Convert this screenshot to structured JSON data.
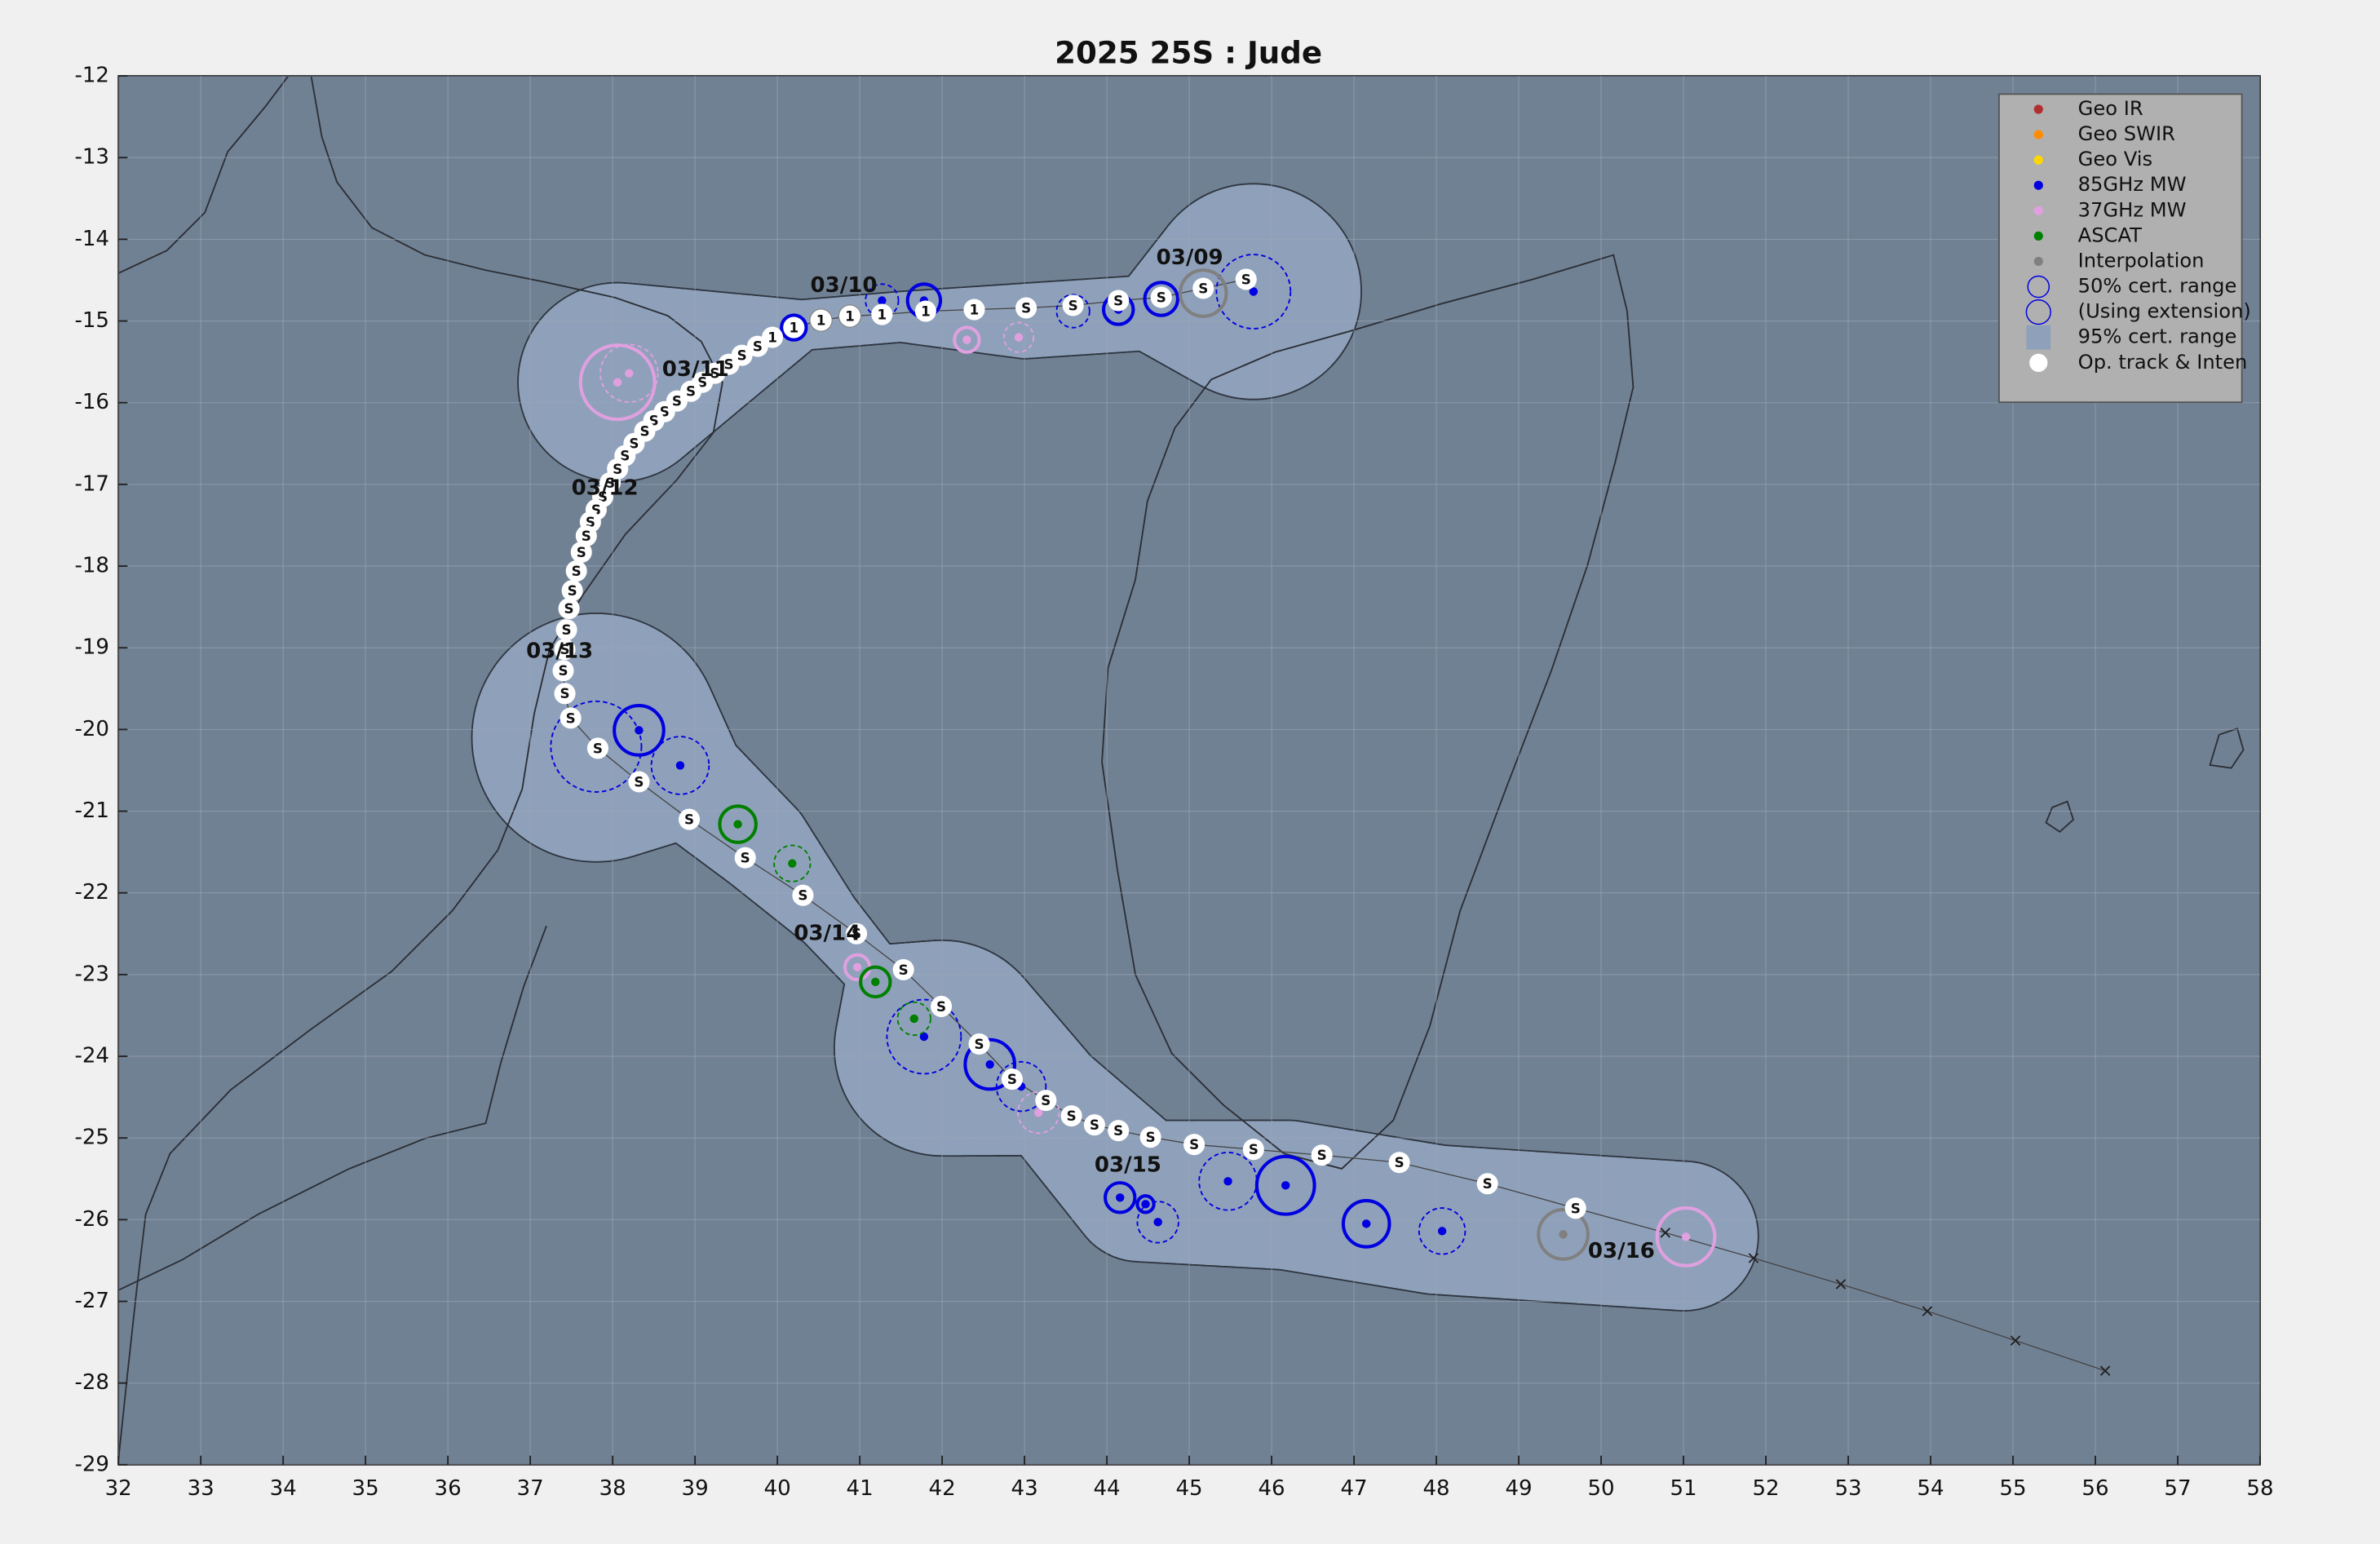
{
  "chart_data": {
    "type": "map",
    "title": "2025  25S :  Jude",
    "xlim": [
      32,
      58
    ],
    "ylim": [
      -29,
      -12
    ],
    "xticks": [
      32,
      33,
      34,
      35,
      36,
      37,
      38,
      39,
      40,
      41,
      42,
      43,
      44,
      45,
      46,
      47,
      48,
      49,
      50,
      51,
      52,
      53,
      54,
      55,
      56,
      57,
      58
    ],
    "yticks": [
      -29,
      -28,
      -27,
      -26,
      -25,
      -24,
      -23,
      -22,
      -21,
      -20,
      -19,
      -18,
      -17,
      -16,
      -15,
      -14,
      -13,
      -12
    ],
    "grid": true,
    "series": [
      {
        "name": "Geo IR",
        "color": "#b03030",
        "x": [],
        "values": [],
        "range": [],
        "dashed": []
      },
      {
        "name": "Geo SWIR",
        "color": "#ff8c00",
        "x": [],
        "values": [],
        "range": [],
        "dashed": []
      },
      {
        "name": "Geo Vis",
        "color": "#ffd700",
        "x": [],
        "values": [],
        "range": [],
        "dashed": []
      },
      {
        "name": "85GHz MW",
        "color": "#0000e0",
        "x": [
          40.2,
          41.27,
          41.78,
          43.59,
          44.14,
          44.66,
          45.78,
          38.32,
          38.82,
          37.8,
          41.78,
          42.58,
          42.96,
          44.16,
          44.47,
          44.62,
          45.47,
          46.17,
          47.15,
          48.07
        ],
        "values": [
          -15.08,
          -14.75,
          -14.75,
          -14.88,
          -14.86,
          -14.73,
          -14.64,
          -20.01,
          -20.44,
          -20.21,
          -23.76,
          -24.1,
          -24.37,
          -25.73,
          -25.81,
          -26.03,
          -25.53,
          -25.58,
          -26.05,
          -26.14
        ],
        "range": [
          0.15,
          0.2,
          0.2,
          0.2,
          0.18,
          0.2,
          0.45,
          0.3,
          0.35,
          0.55,
          0.45,
          0.3,
          0.3,
          0.18,
          0.1,
          0.25,
          0.35,
          0.35,
          0.28,
          0.28
        ],
        "dashed": [
          false,
          true,
          false,
          true,
          false,
          false,
          true,
          false,
          true,
          true,
          true,
          false,
          true,
          false,
          false,
          true,
          true,
          false,
          false,
          true
        ]
      },
      {
        "name": "37GHz MW",
        "color": "#e0a0e0",
        "x": [
          38.06,
          38.2,
          42.3,
          42.93,
          40.97,
          43.17,
          51.03
        ],
        "values": [
          -15.75,
          -15.64,
          -15.23,
          -15.2,
          -22.91,
          -24.69,
          -26.21
        ],
        "range": [
          0.45,
          0.35,
          0.15,
          0.18,
          0.15,
          0.25,
          0.35
        ],
        "dashed": [
          false,
          true,
          false,
          true,
          false,
          true,
          false
        ]
      },
      {
        "name": "ASCAT",
        "color": "#008000",
        "x": [
          39.52,
          40.18,
          41.19,
          41.66
        ],
        "values": [
          -21.16,
          -21.64,
          -23.09,
          -23.54
        ],
        "range": [
          0.22,
          0.22,
          0.18,
          0.2
        ],
        "dashed": [
          false,
          true,
          false,
          true
        ]
      },
      {
        "name": "Interpolation",
        "color": "#808080",
        "x": [
          45.17,
          40.53,
          40.88,
          49.54
        ],
        "values": [
          -14.66,
          -14.99,
          -14.94,
          -26.18
        ],
        "range": [
          0.28,
          0.12,
          0.12,
          0.3
        ],
        "dashed": [
          false,
          false,
          false,
          false
        ]
      }
    ],
    "ranges": [
      {
        "name": "50% cert. range",
        "color": "#0000e0"
      },
      {
        "name": "(Using extension)",
        "color": "#0000e0"
      },
      {
        "name": "95% cert. range",
        "color": "#8fa1ba",
        "regions": [
          [
            [
              45.78,
              -14.64,
              1.3
            ],
            [
              44.5,
              -14.9,
              0.45
            ],
            [
              43.0,
              -15.0,
              0.45
            ],
            [
              41.5,
              -14.95,
              0.3
            ],
            [
              40.3,
              -15.05,
              0.3
            ],
            [
              38.06,
              -15.75,
              1.2
            ]
          ],
          [
            [
              37.8,
              -20.1,
              1.5
            ],
            [
              38.9,
              -20.6,
              0.7
            ],
            [
              39.8,
              -21.4,
              0.6
            ],
            [
              40.6,
              -22.3,
              0.4
            ],
            [
              41.2,
              -23.0,
              0.35
            ],
            [
              42.0,
              -23.9,
              1.3
            ],
            [
              43.3,
              -24.5,
              0.7
            ],
            [
              44.4,
              -25.65,
              0.85
            ],
            [
              46.2,
              -25.7,
              0.9
            ],
            [
              48.0,
              -26.0,
              0.9
            ],
            [
              51.0,
              -26.2,
              0.9
            ]
          ]
        ]
      }
    ],
    "track": {
      "name": "Op. track & Inten",
      "color": "#ffffff",
      "x": [
        45.69,
        45.17,
        44.66,
        44.14,
        43.59,
        43.02,
        42.39,
        41.8,
        41.27,
        40.88,
        40.53,
        40.2,
        39.94,
        39.76,
        39.57,
        39.41,
        39.24,
        39.09,
        38.95,
        38.78,
        38.63,
        38.5,
        38.39,
        38.26,
        38.15,
        38.06,
        37.97,
        37.88,
        37.8,
        37.73,
        37.68,
        37.62,
        37.56,
        37.51,
        37.47,
        37.44,
        37.42,
        37.4,
        37.42,
        37.49,
        37.82,
        38.32,
        38.93,
        39.61,
        40.31,
        40.96,
        41.53,
        41.99,
        42.45,
        42.85,
        43.26,
        43.57,
        43.85,
        44.14,
        44.53,
        45.06,
        45.78,
        46.61,
        47.55,
        48.62,
        49.69,
        50.78,
        51.85,
        52.91,
        53.96,
        55.03,
        56.12
      ],
      "values": [
        -14.49,
        -14.6,
        -14.71,
        -14.75,
        -14.81,
        -14.84,
        -14.86,
        -14.88,
        -14.92,
        -14.94,
        -14.99,
        -15.08,
        -15.2,
        -15.31,
        -15.42,
        -15.53,
        -15.64,
        -15.75,
        -15.86,
        -15.98,
        -16.11,
        -16.22,
        -16.35,
        -16.5,
        -16.65,
        -16.81,
        -16.98,
        -17.15,
        -17.31,
        -17.46,
        -17.63,
        -17.83,
        -18.06,
        -18.3,
        -18.52,
        -18.78,
        -19.02,
        -19.28,
        -19.56,
        -19.86,
        -20.23,
        -20.64,
        -21.1,
        -21.57,
        -22.03,
        -22.5,
        -22.94,
        -23.39,
        -23.85,
        -24.28,
        -24.54,
        -24.73,
        -24.84,
        -24.91,
        -24.99,
        -25.08,
        -25.14,
        -25.21,
        -25.3,
        -25.56,
        -25.86,
        -26.16,
        -26.47,
        -26.79,
        -27.12,
        -27.48,
        -27.85
      ],
      "point_labels": [
        "S",
        "S",
        "S",
        "S",
        "S",
        "S",
        "1",
        "1",
        "1",
        "1",
        "1",
        "1",
        "1",
        "S",
        "S",
        "S",
        "S",
        "S",
        "S",
        "S",
        "S",
        "S",
        "S",
        "S",
        "S",
        "S",
        "S",
        "S",
        "S",
        "S",
        "S",
        "S",
        "S",
        "S",
        "S",
        "S",
        "S",
        "S",
        "S",
        "S",
        "S",
        "S",
        "S",
        "S",
        "S",
        "S",
        "S",
        "S",
        "S",
        "S",
        "S",
        "S",
        "S",
        "S",
        "S",
        "S",
        "S",
        "S",
        "S",
        "S",
        "S",
        null,
        null,
        null,
        null,
        null,
        null
      ]
    },
    "annotations": [
      {
        "text": "03/09",
        "x": 44.6,
        "y": -14.23
      },
      {
        "text": "03/10",
        "x": 40.4,
        "y": -14.57
      },
      {
        "text": "03/11",
        "x": 38.6,
        "y": -15.6
      },
      {
        "text": "03/12",
        "x": 37.5,
        "y": -17.05
      },
      {
        "text": "03/13",
        "x": 36.95,
        "y": -19.05
      },
      {
        "text": "03/14",
        "x": 40.2,
        "y": -22.5
      },
      {
        "text": "03/15",
        "x": 43.85,
        "y": -25.34
      },
      {
        "text": "03/16",
        "x": 49.84,
        "y": -26.39
      }
    ]
  }
}
